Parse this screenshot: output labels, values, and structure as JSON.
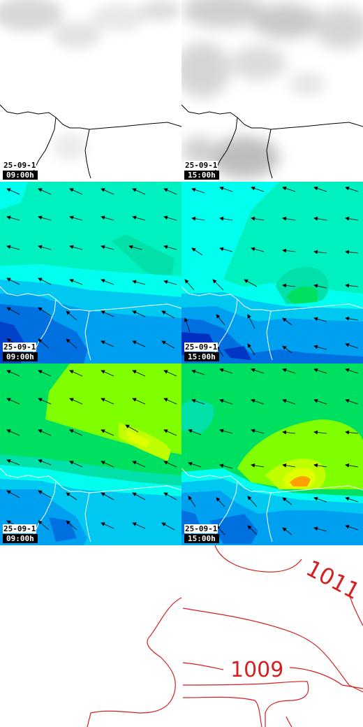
{
  "panels": [
    {
      "id": "cloud-0900",
      "date": "25-09-1",
      "time": "09:00h"
    },
    {
      "id": "cloud-1500",
      "date": "25-09-1",
      "time": "15:00h"
    },
    {
      "id": "wind-low-0900",
      "date": "25-09-1",
      "time": "09:00h"
    },
    {
      "id": "wind-low-1500",
      "date": "25-09-1",
      "time": "15:00h"
    },
    {
      "id": "wind-mid-0900",
      "date": "25-09-1",
      "time": "09:00h"
    },
    {
      "id": "wind-mid-1500",
      "date": "25-09-1",
      "time": "15:00h"
    }
  ],
  "pressure_map": {
    "isobars": [
      {
        "label": "1011"
      },
      {
        "label": "1009"
      }
    ],
    "line_color": "#d42020"
  },
  "colors": {
    "cyan": "#00ffee",
    "aqua": "#00f0c0",
    "teal": "#00e0a8",
    "blue1": "#00c8f0",
    "blue2": "#00a0f0",
    "blue3": "#0070e0",
    "blue4": "#0030c0",
    "green": "#00e060",
    "lime": "#80ff00",
    "yellow": "#e0ff00",
    "orange": "#ffa000"
  }
}
